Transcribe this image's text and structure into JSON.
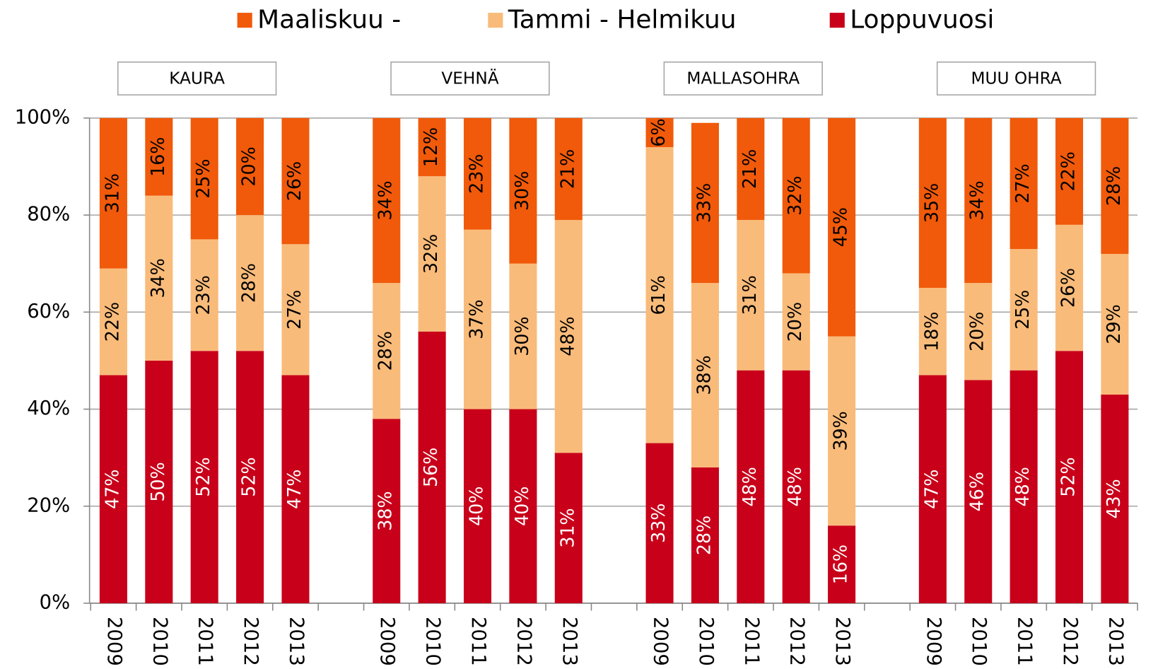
{
  "chart_data": {
    "type": "stacked_bar",
    "categories": [
      "2009",
      "2010",
      "2011",
      "2012",
      "2013",
      "2009",
      "2010",
      "2011",
      "2012",
      "2013",
      "2009",
      "2010",
      "2011",
      "2012",
      "2013",
      "2009",
      "2010",
      "2011",
      "2012",
      "2013"
    ],
    "groups": [
      {
        "label": "KAURA",
        "size": 5
      },
      {
        "label": "VEHNÄ",
        "size": 5
      },
      {
        "label": "MALLASOHRA",
        "size": 5
      },
      {
        "label": "MUU OHRA",
        "size": 5
      }
    ],
    "series": [
      {
        "name": "Maaliskuu -",
        "color": "#f05a0a",
        "values": [
          31,
          16,
          25,
          20,
          26,
          34,
          12,
          23,
          30,
          21,
          6,
          33,
          21,
          32,
          45,
          35,
          34,
          27,
          22,
          28
        ],
        "value_labels": [
          "31%",
          "16%",
          "25%",
          "20%",
          "26%",
          "34%",
          "12%",
          "23%",
          "30%",
          "21%",
          "6%",
          "33%",
          "21%",
          "32%",
          "45%",
          "35%",
          "34%",
          "27%",
          "22%",
          "28%"
        ]
      },
      {
        "name": "Tammi - Helmikuu",
        "color": "#f9bb7a",
        "values": [
          22,
          34,
          23,
          28,
          27,
          28,
          32,
          37,
          30,
          48,
          61,
          38,
          31,
          20,
          39,
          18,
          20,
          25,
          26,
          29
        ],
        "value_labels": [
          "22%",
          "34%",
          "23%",
          "28%",
          "27%",
          "28%",
          "32%",
          "37%",
          "30%",
          "48%",
          "61%",
          "38%",
          "31%",
          "20%",
          "39%",
          "18%",
          "20%",
          "25%",
          "26%",
          "29%"
        ]
      },
      {
        "name": "Loppuvuosi",
        "color": "#c8001a",
        "values": [
          47,
          50,
          52,
          52,
          47,
          38,
          56,
          40,
          40,
          31,
          33,
          28,
          48,
          48,
          16,
          47,
          46,
          48,
          52,
          43
        ],
        "value_labels": [
          "47%",
          "50%",
          "52%",
          "52%",
          "47%",
          "38%",
          "56%",
          "40%",
          "40%",
          "31%",
          "33%",
          "28%",
          "48%",
          "48%",
          "16%",
          "47%",
          "46%",
          "48%",
          "52%",
          "43%"
        ]
      }
    ],
    "ylim": [
      0,
      100
    ],
    "yticks": [
      {
        "value": 0,
        "label": "0%"
      },
      {
        "value": 20,
        "label": "20%"
      },
      {
        "value": 40,
        "label": "40%"
      },
      {
        "value": 60,
        "label": "60%"
      },
      {
        "value": 80,
        "label": "80%"
      },
      {
        "value": 100,
        "label": "100%"
      }
    ],
    "grid": true,
    "legend": "top"
  }
}
